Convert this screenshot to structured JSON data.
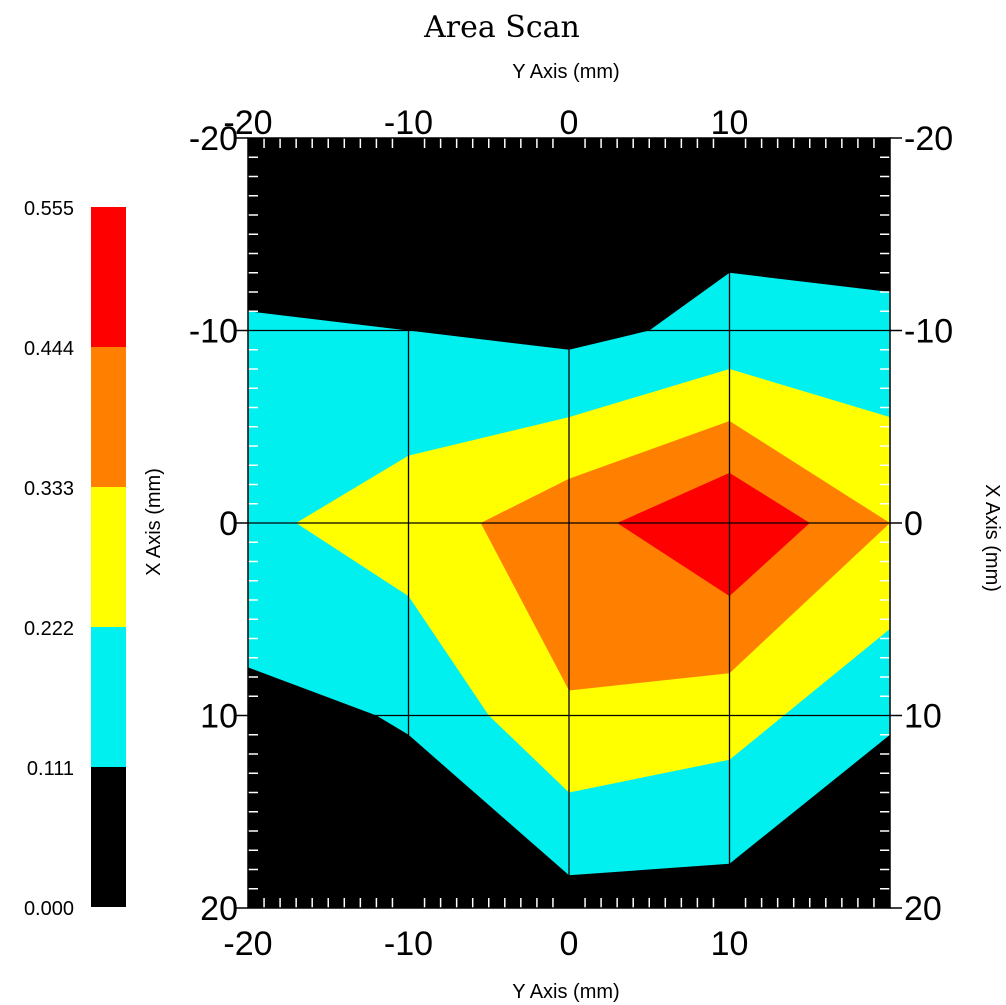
{
  "chart_data": {
    "type": "contour",
    "title": "Area Scan",
    "xlabel_top": "Y Axis (mm)",
    "xlabel_bottom": "Y Axis (mm)",
    "ylabel_left": "X Axis (mm)",
    "ylabel_right": "X Axis (mm)",
    "x_ticks": [
      "-20",
      "-10",
      "0",
      "10"
    ],
    "y_ticks": [
      "-20",
      "-10",
      "0",
      "10",
      "20"
    ],
    "bottom_x_ticks": [
      "-20",
      "-10",
      "0",
      "10"
    ],
    "xlim": [
      -20,
      20
    ],
    "ylim": [
      -20,
      20
    ],
    "y_inverted": true,
    "grid": true,
    "colorbar": {
      "placement": "left",
      "levels": [
        "0.000",
        "0.111",
        "0.222",
        "0.333",
        "0.444",
        "0.555"
      ],
      "colors": [
        "#000000",
        "#00f0f0",
        "#ffff00",
        "#ff8000",
        "#ff0000"
      ]
    },
    "contour_bands": [
      {
        "level_min": 0.0,
        "level_max": 0.111,
        "color": "#000000",
        "polygon": [
          [
            -20,
            -20
          ],
          [
            20,
            -20
          ],
          [
            20,
            20
          ],
          [
            -20,
            20
          ]
        ]
      },
      {
        "level_min": 0.111,
        "level_max": 0.222,
        "color": "#00f0f0",
        "polygon": [
          [
            -20,
            -11
          ],
          [
            -10,
            -10
          ],
          [
            0,
            -9
          ],
          [
            5,
            -10
          ],
          [
            10,
            -13
          ],
          [
            20,
            -12
          ],
          [
            20,
            11
          ],
          [
            10,
            17.7
          ],
          [
            0,
            18.3
          ],
          [
            -10,
            11
          ],
          [
            -12,
            10
          ],
          [
            -20,
            7.5
          ]
        ]
      },
      {
        "level_min": 0.222,
        "level_max": 0.333,
        "color": "#ffff00",
        "polygon": [
          [
            -17,
            0
          ],
          [
            -10,
            -3.5
          ],
          [
            0,
            -5.5
          ],
          [
            10,
            -8
          ],
          [
            20,
            -5.5
          ],
          [
            20,
            5.5
          ],
          [
            10,
            12.3
          ],
          [
            0,
            14
          ],
          [
            -5,
            10
          ],
          [
            -10,
            3.8
          ]
        ]
      },
      {
        "level_min": 0.333,
        "level_max": 0.444,
        "color": "#ff8000",
        "polygon": [
          [
            -5.5,
            0
          ],
          [
            0,
            -2.3
          ],
          [
            10,
            -5.3
          ],
          [
            20,
            0
          ],
          [
            10,
            7.8
          ],
          [
            0,
            8.7
          ]
        ]
      },
      {
        "level_min": 0.444,
        "level_max": 0.555,
        "color": "#ff0000",
        "polygon": [
          [
            3,
            0
          ],
          [
            10,
            -2.6
          ],
          [
            15,
            0
          ],
          [
            10,
            3.8
          ]
        ]
      }
    ]
  }
}
